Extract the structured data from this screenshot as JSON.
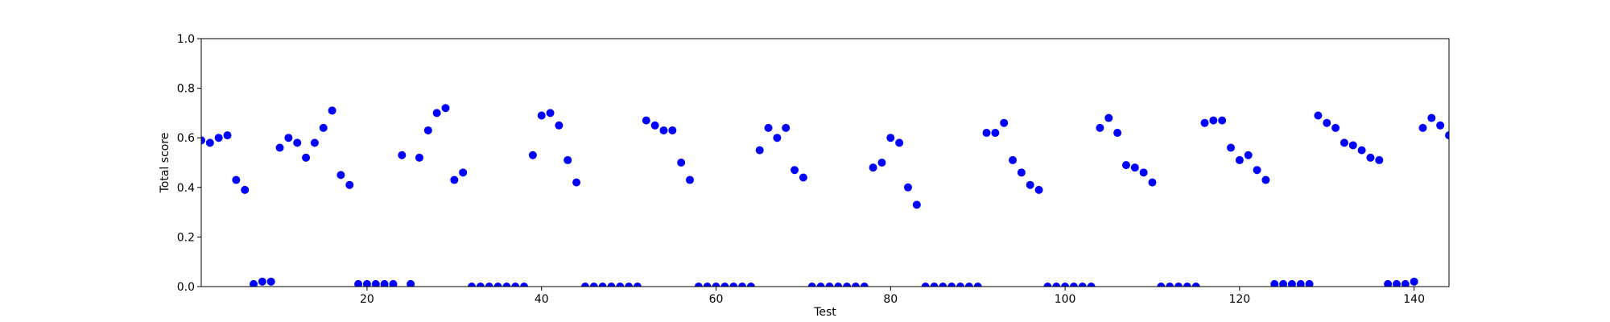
{
  "chart_data": {
    "type": "scatter",
    "xlabel": "Test",
    "ylabel": "Total score",
    "color": "#0000ff",
    "xlim": [
      1,
      144
    ],
    "ylim": [
      0,
      1
    ],
    "xticks": [
      20,
      40,
      60,
      80,
      100,
      120,
      140
    ],
    "yticks": [
      {
        "value": 0,
        "label": "0.0"
      },
      {
        "value": 0.2,
        "label": "0.2"
      },
      {
        "value": 0.4,
        "label": "0.4"
      },
      {
        "value": 0.6,
        "label": "0.6"
      },
      {
        "value": 0.8,
        "label": "0.8"
      },
      {
        "value": 1,
        "label": "1.0"
      }
    ],
    "x": [
      1,
      2,
      3,
      4,
      5,
      6,
      7,
      8,
      9,
      10,
      11,
      12,
      13,
      14,
      15,
      16,
      17,
      18,
      19,
      20,
      21,
      22,
      23,
      24,
      25,
      26,
      27,
      28,
      29,
      30,
      31,
      32,
      33,
      34,
      35,
      36,
      37,
      38,
      39,
      40,
      41,
      42,
      43,
      44,
      45,
      46,
      47,
      48,
      49,
      50,
      51,
      52,
      53,
      54,
      55,
      56,
      57,
      58,
      59,
      60,
      61,
      62,
      63,
      64,
      65,
      66,
      67,
      68,
      69,
      70,
      71,
      72,
      73,
      74,
      75,
      76,
      77,
      78,
      79,
      80,
      81,
      82,
      83,
      84,
      85,
      86,
      87,
      88,
      89,
      90,
      91,
      92,
      93,
      94,
      95,
      96,
      97,
      98,
      99,
      100,
      101,
      102,
      103,
      104,
      105,
      106,
      107,
      108,
      109,
      110,
      111,
      112,
      113,
      114,
      115,
      116,
      117,
      118,
      119,
      120,
      121,
      122,
      123,
      124,
      125,
      126,
      127,
      128,
      129,
      130,
      131,
      132,
      133,
      134,
      135,
      136,
      137,
      138,
      139,
      140,
      141,
      142,
      143,
      144
    ],
    "values": [
      0.59,
      0.58,
      0.6,
      0.61,
      0.43,
      0.39,
      0.01,
      0.02,
      0.02,
      0.56,
      0.6,
      0.58,
      0.52,
      0.58,
      0.64,
      0.71,
      0.45,
      0.41,
      0.01,
      0.01,
      0.01,
      0.01,
      0.01,
      0.53,
      0.01,
      0.52,
      0.63,
      0.7,
      0.72,
      0.43,
      0.46,
      0,
      0,
      0,
      0,
      0,
      0,
      0,
      0.53,
      0.69,
      0.7,
      0.65,
      0.51,
      0.42,
      0,
      0,
      0,
      0,
      0,
      0,
      0,
      0.67,
      0.65,
      0.63,
      0.63,
      0.5,
      0.43,
      0,
      0,
      0,
      0,
      0,
      0,
      0,
      0.55,
      0.64,
      0.6,
      0.64,
      0.47,
      0.44,
      0,
      0,
      0,
      0,
      0,
      0,
      0,
      0.48,
      0.5,
      0.6,
      0.58,
      0.4,
      0.33,
      0,
      0,
      0,
      0,
      0,
      0,
      0,
      0.62,
      0.62,
      0.66,
      0.51,
      0.46,
      0.41,
      0.39,
      0,
      0,
      0,
      0,
      0,
      0,
      0.64,
      0.68,
      0.62,
      0.49,
      0.48,
      0.46,
      0.42,
      0,
      0,
      0,
      0,
      0,
      0.66,
      0.67,
      0.67,
      0.56,
      0.51,
      0.53,
      0.47,
      0.43,
      0.01,
      0.01,
      0.01,
      0.01,
      0.01,
      0.69,
      0.66,
      0.64,
      0.58,
      0.57,
      0.55,
      0.52,
      0.51,
      0.01,
      0.01,
      0.01,
      0.02,
      0.64,
      0.68,
      0.65,
      0.61
    ]
  }
}
